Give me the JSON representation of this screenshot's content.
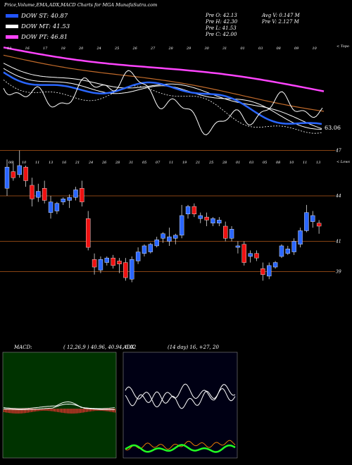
{
  "header": {
    "title": "Price,Volume,EMA,ADX,MACD Charts for MGA MunafaSutra.com"
  },
  "legend": [
    {
      "label": "DOW ST: 40.87",
      "color": "#2255ff"
    },
    {
      "label": "DOW MT: 41.53",
      "color": "#ffffff"
    },
    {
      "label": "DOW PT: 46.81",
      "color": "#ff44ff"
    }
  ],
  "stats": {
    "prev_open": "Pre   O: 42.13",
    "prev_high": "Pre   H: 42.30",
    "prev_low": "Pre   L: 41.53",
    "prev_close": "Pre   C: 42.00",
    "avg_volume": "Avg V: 0.147 M",
    "prev_volume": "Pre   V: 2.127 M"
  },
  "ema_panel": {
    "right_label": "< Topo",
    "price_tag": "63.06",
    "top_ticks": [
      "13",
      "16",
      "17",
      "18",
      "20",
      "24",
      "25",
      "26",
      "27",
      "28",
      "29",
      "30",
      "31",
      "01",
      "03",
      "08",
      "09",
      "10"
    ],
    "bottom_ticks": [
      "06",
      "10",
      "11",
      "13",
      "16",
      "21",
      "24",
      "26",
      "28",
      "31",
      "05",
      "07",
      "11",
      "19",
      "21",
      "25",
      "28",
      "01",
      "03",
      "05",
      "08",
      "10",
      "11",
      "13"
    ]
  },
  "candle_panel": {
    "right_label": "< Lows",
    "y_labels": [
      "47",
      "44",
      "41",
      "39"
    ],
    "y_values": [
      47,
      44,
      41,
      39
    ]
  },
  "macd_panel": {
    "title": "MACD:",
    "params": "( 12,26,9 ) 40.96, 40.94, 0.02"
  },
  "adx_panel": {
    "title": "ADX",
    "params": "(14 day) 16, +27, 20"
  },
  "chart_data": {
    "type": "candlestick",
    "y_axis_values": [
      47,
      44,
      41,
      39
    ],
    "series": [
      {
        "name": "DOW ST",
        "last": 40.87
      },
      {
        "name": "DOW MT",
        "last": 41.53
      },
      {
        "name": "DOW PT",
        "last": 46.81
      }
    ],
    "candles": [
      {
        "o": 44.5,
        "h": 46.4,
        "l": 44.0,
        "c": 45.9
      },
      {
        "o": 45.6,
        "h": 46.3,
        "l": 45.0,
        "c": 45.2
      },
      {
        "o": 45.4,
        "h": 47.0,
        "l": 45.2,
        "c": 46.0
      },
      {
        "o": 45.9,
        "h": 46.0,
        "l": 44.6,
        "c": 45.0
      },
      {
        "o": 44.7,
        "h": 45.2,
        "l": 43.3,
        "c": 43.8
      },
      {
        "o": 43.9,
        "h": 44.8,
        "l": 43.6,
        "c": 44.3
      },
      {
        "o": 44.5,
        "h": 45.0,
        "l": 43.5,
        "c": 43.7
      },
      {
        "o": 42.9,
        "h": 44.0,
        "l": 42.5,
        "c": 43.6
      },
      {
        "o": 43.0,
        "h": 43.6,
        "l": 42.8,
        "c": 43.5
      },
      {
        "o": 43.6,
        "h": 43.9,
        "l": 43.4,
        "c": 43.8
      },
      {
        "o": 43.7,
        "h": 44.1,
        "l": 43.2,
        "c": 43.9
      },
      {
        "o": 43.9,
        "h": 44.6,
        "l": 43.7,
        "c": 44.4
      },
      {
        "o": 44.5,
        "h": 45.0,
        "l": 43.3,
        "c": 43.6
      },
      {
        "o": 42.5,
        "h": 43.0,
        "l": 40.4,
        "c": 40.6
      },
      {
        "o": 39.8,
        "h": 40.2,
        "l": 38.8,
        "c": 39.3
      },
      {
        "o": 39.1,
        "h": 40.0,
        "l": 38.9,
        "c": 39.8
      },
      {
        "o": 39.6,
        "h": 40.0,
        "l": 39.4,
        "c": 39.9
      },
      {
        "o": 39.9,
        "h": 40.1,
        "l": 39.2,
        "c": 39.4
      },
      {
        "o": 39.7,
        "h": 39.9,
        "l": 38.9,
        "c": 39.5
      },
      {
        "o": 39.6,
        "h": 39.9,
        "l": 38.4,
        "c": 38.6
      },
      {
        "o": 38.5,
        "h": 40.0,
        "l": 38.3,
        "c": 39.8
      },
      {
        "o": 39.7,
        "h": 40.6,
        "l": 39.5,
        "c": 40.3
      },
      {
        "o": 40.2,
        "h": 40.8,
        "l": 40.0,
        "c": 40.7
      },
      {
        "o": 40.3,
        "h": 40.9,
        "l": 40.2,
        "c": 40.8
      },
      {
        "o": 40.7,
        "h": 41.3,
        "l": 40.6,
        "c": 41.1
      },
      {
        "o": 41.2,
        "h": 41.6,
        "l": 40.9,
        "c": 41.5
      },
      {
        "o": 41.0,
        "h": 41.9,
        "l": 40.7,
        "c": 41.3
      },
      {
        "o": 41.2,
        "h": 41.5,
        "l": 40.8,
        "c": 41.4
      },
      {
        "o": 41.4,
        "h": 43.4,
        "l": 41.2,
        "c": 42.7
      },
      {
        "o": 42.8,
        "h": 43.4,
        "l": 42.5,
        "c": 43.3
      },
      {
        "o": 43.3,
        "h": 43.5,
        "l": 42.6,
        "c": 42.8
      },
      {
        "o": 42.5,
        "h": 42.9,
        "l": 42.2,
        "c": 42.7
      },
      {
        "o": 42.6,
        "h": 42.9,
        "l": 42.0,
        "c": 42.4
      },
      {
        "o": 42.2,
        "h": 42.6,
        "l": 42.0,
        "c": 42.5
      },
      {
        "o": 42.2,
        "h": 42.6,
        "l": 42.0,
        "c": 42.4
      },
      {
        "o": 42.0,
        "h": 42.3,
        "l": 41.0,
        "c": 41.2
      },
      {
        "o": 41.2,
        "h": 42.0,
        "l": 41.0,
        "c": 41.8
      },
      {
        "o": 40.6,
        "h": 41.0,
        "l": 40.2,
        "c": 40.7
      },
      {
        "o": 40.8,
        "h": 41.0,
        "l": 39.4,
        "c": 39.6
      },
      {
        "o": 40.0,
        "h": 40.4,
        "l": 39.6,
        "c": 40.2
      },
      {
        "o": 40.2,
        "h": 40.4,
        "l": 39.7,
        "c": 39.9
      },
      {
        "o": 39.2,
        "h": 39.6,
        "l": 38.4,
        "c": 38.8
      },
      {
        "o": 38.7,
        "h": 39.6,
        "l": 38.5,
        "c": 39.4
      },
      {
        "o": 39.3,
        "h": 39.7,
        "l": 39.2,
        "c": 39.6
      },
      {
        "o": 40.0,
        "h": 40.8,
        "l": 39.9,
        "c": 40.7
      },
      {
        "o": 40.2,
        "h": 40.7,
        "l": 40.1,
        "c": 40.5
      },
      {
        "o": 40.3,
        "h": 41.2,
        "l": 40.1,
        "c": 41.0
      },
      {
        "o": 40.8,
        "h": 41.9,
        "l": 40.6,
        "c": 41.7
      },
      {
        "o": 41.7,
        "h": 43.4,
        "l": 41.6,
        "c": 42.9
      },
      {
        "o": 42.3,
        "h": 43.0,
        "l": 41.9,
        "c": 42.7
      },
      {
        "o": 42.2,
        "h": 42.4,
        "l": 41.5,
        "c": 42.0
      }
    ],
    "legend_placement": "top-left"
  }
}
